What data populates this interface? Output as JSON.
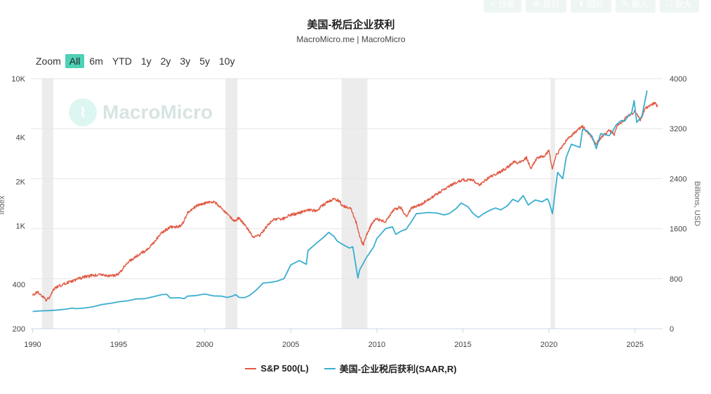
{
  "toolbar": {
    "buttons": [
      {
        "label": "分享",
        "icon": "share-icon"
      },
      {
        "label": "自订",
        "icon": "gear-icon"
      },
      {
        "label": "图片",
        "icon": "download-icon"
      },
      {
        "label": "嵌入",
        "icon": "pencil-icon"
      },
      {
        "label": "放大",
        "icon": "expand-icon"
      }
    ]
  },
  "header": {
    "title": "美国-税后企业获利",
    "subtitle": "MacroMicro.me | MacroMicro"
  },
  "zoom": {
    "label": "Zoom",
    "options": [
      "All",
      "6m",
      "YTD",
      "1y",
      "2y",
      "3y",
      "5y",
      "10y"
    ],
    "active": "All"
  },
  "watermark": {
    "text": "MacroMicro"
  },
  "colors": {
    "sp500": "#e05a43",
    "profits": "#3aaed0",
    "recession": "#ececec",
    "grid": "#e6e6e6",
    "accent": "#4fd1b6"
  },
  "chart_data": {
    "type": "line",
    "title": "美国-税后企业获利",
    "x_axis": {
      "ticks": [
        1990,
        1995,
        2000,
        2005,
        2010,
        2015,
        2020,
        2025
      ],
      "range": [
        1989.9,
        2026.6
      ]
    },
    "y_left": {
      "label": "Index",
      "scale": "log",
      "range": [
        200,
        10000
      ],
      "ticks": [
        {
          "value": 200,
          "label": "200"
        },
        {
          "value": 400,
          "label": "400"
        },
        {
          "value": 1000,
          "label": "1K"
        },
        {
          "value": 2000,
          "label": "2K"
        },
        {
          "value": 4000,
          "label": "4K"
        },
        {
          "value": 10000,
          "label": "10K"
        }
      ]
    },
    "y_right": {
      "label": "Billions, USD",
      "scale": "linear",
      "range": [
        0,
        4000
      ],
      "ticks": [
        0,
        800,
        1600,
        2400,
        3200,
        4000
      ]
    },
    "recessions": [
      [
        1990.55,
        1991.2
      ],
      [
        2001.2,
        2001.9
      ],
      [
        2007.95,
        2009.45
      ],
      [
        2020.1,
        2020.35
      ]
    ],
    "series": [
      {
        "name": "S&P 500(L)",
        "axis": "left",
        "points": [
          [
            1990.0,
            340
          ],
          [
            1990.3,
            355
          ],
          [
            1990.6,
            330
          ],
          [
            1990.8,
            310
          ],
          [
            1991.0,
            330
          ],
          [
            1991.3,
            380
          ],
          [
            1992.0,
            410
          ],
          [
            1993.0,
            450
          ],
          [
            1994.0,
            470
          ],
          [
            1994.5,
            455
          ],
          [
            1995.0,
            470
          ],
          [
            1995.5,
            560
          ],
          [
            1996.0,
            620
          ],
          [
            1996.5,
            670
          ],
          [
            1997.0,
            760
          ],
          [
            1997.5,
            900
          ],
          [
            1998.0,
            980
          ],
          [
            1998.6,
            1000
          ],
          [
            1998.8,
            1080
          ],
          [
            1999.0,
            1230
          ],
          [
            1999.5,
            1360
          ],
          [
            2000.0,
            1420
          ],
          [
            2000.5,
            1460
          ],
          [
            2000.8,
            1380
          ],
          [
            2001.0,
            1320
          ],
          [
            2001.3,
            1200
          ],
          [
            2001.7,
            1080
          ],
          [
            2002.0,
            1130
          ],
          [
            2002.5,
            950
          ],
          [
            2002.8,
            840
          ],
          [
            2003.2,
            860
          ],
          [
            2003.6,
            990
          ],
          [
            2004.0,
            1120
          ],
          [
            2004.5,
            1110
          ],
          [
            2005.0,
            1190
          ],
          [
            2005.5,
            1220
          ],
          [
            2006.0,
            1280
          ],
          [
            2006.5,
            1270
          ],
          [
            2007.0,
            1420
          ],
          [
            2007.5,
            1520
          ],
          [
            2007.8,
            1480
          ],
          [
            2008.0,
            1380
          ],
          [
            2008.5,
            1300
          ],
          [
            2008.8,
            1050
          ],
          [
            2009.0,
            850
          ],
          [
            2009.2,
            740
          ],
          [
            2009.5,
            920
          ],
          [
            2009.8,
            1080
          ],
          [
            2010.0,
            1110
          ],
          [
            2010.5,
            1070
          ],
          [
            2011.0,
            1290
          ],
          [
            2011.4,
            1340
          ],
          [
            2011.7,
            1150
          ],
          [
            2012.0,
            1310
          ],
          [
            2012.5,
            1390
          ],
          [
            2013.0,
            1500
          ],
          [
            2013.5,
            1650
          ],
          [
            2014.0,
            1800
          ],
          [
            2014.5,
            1950
          ],
          [
            2015.0,
            2050
          ],
          [
            2015.6,
            2050
          ],
          [
            2015.8,
            1930
          ],
          [
            2016.0,
            1900
          ],
          [
            2016.5,
            2130
          ],
          [
            2017.0,
            2280
          ],
          [
            2017.5,
            2450
          ],
          [
            2018.0,
            2750
          ],
          [
            2018.2,
            2650
          ],
          [
            2018.7,
            2900
          ],
          [
            2018.95,
            2450
          ],
          [
            2019.3,
            2880
          ],
          [
            2019.7,
            2980
          ],
          [
            2020.0,
            3230
          ],
          [
            2020.2,
            2400
          ],
          [
            2020.4,
            3000
          ],
          [
            2020.7,
            3350
          ],
          [
            2021.0,
            3800
          ],
          [
            2021.5,
            4300
          ],
          [
            2021.95,
            4750
          ],
          [
            2022.3,
            4200
          ],
          [
            2022.75,
            3600
          ],
          [
            2023.0,
            3950
          ],
          [
            2023.5,
            4450
          ],
          [
            2023.8,
            4200
          ],
          [
            2024.0,
            4800
          ],
          [
            2024.5,
            5450
          ],
          [
            2025.0,
            6000
          ],
          [
            2025.3,
            5200
          ],
          [
            2025.6,
            6300
          ],
          [
            2026.0,
            6700
          ],
          [
            2026.2,
            6850
          ],
          [
            2026.3,
            6400
          ]
        ]
      },
      {
        "name": "美国-企业税后获利(SAAR,R)",
        "axis": "right",
        "points": [
          [
            1990.0,
            275
          ],
          [
            1990.5,
            285
          ],
          [
            1991.0,
            290
          ],
          [
            1991.5,
            300
          ],
          [
            1992.0,
            315
          ],
          [
            1992.3,
            330
          ],
          [
            1992.5,
            320
          ],
          [
            1993.0,
            330
          ],
          [
            1993.5,
            350
          ],
          [
            1994.0,
            385
          ],
          [
            1994.5,
            405
          ],
          [
            1995.0,
            430
          ],
          [
            1995.5,
            445
          ],
          [
            1996.0,
            475
          ],
          [
            1996.5,
            480
          ],
          [
            1997.0,
            510
          ],
          [
            1997.5,
            545
          ],
          [
            1997.8,
            550
          ],
          [
            1998.0,
            490
          ],
          [
            1998.5,
            495
          ],
          [
            1998.8,
            480
          ],
          [
            1999.0,
            520
          ],
          [
            1999.5,
            530
          ],
          [
            2000.0,
            555
          ],
          [
            2000.5,
            525
          ],
          [
            2001.0,
            520
          ],
          [
            2001.3,
            500
          ],
          [
            2001.6,
            520
          ],
          [
            2001.8,
            545
          ],
          [
            2002.0,
            500
          ],
          [
            2002.3,
            495
          ],
          [
            2002.6,
            530
          ],
          [
            2003.0,
            620
          ],
          [
            2003.4,
            730
          ],
          [
            2003.8,
            740
          ],
          [
            2004.2,
            760
          ],
          [
            2004.6,
            800
          ],
          [
            2005.0,
            1020
          ],
          [
            2005.5,
            1090
          ],
          [
            2005.9,
            1030
          ],
          [
            2006.0,
            1250
          ],
          [
            2006.5,
            1370
          ],
          [
            2006.9,
            1460
          ],
          [
            2007.2,
            1540
          ],
          [
            2007.5,
            1480
          ],
          [
            2007.7,
            1400
          ],
          [
            2008.0,
            1350
          ],
          [
            2008.4,
            1290
          ],
          [
            2008.6,
            1310
          ],
          [
            2008.9,
            810
          ],
          [
            2009.0,
            940
          ],
          [
            2009.4,
            1140
          ],
          [
            2009.8,
            1300
          ],
          [
            2010.0,
            1440
          ],
          [
            2010.5,
            1600
          ],
          [
            2010.9,
            1630
          ],
          [
            2011.1,
            1510
          ],
          [
            2011.4,
            1560
          ],
          [
            2011.7,
            1590
          ],
          [
            2012.0,
            1710
          ],
          [
            2012.3,
            1840
          ],
          [
            2012.7,
            1850
          ],
          [
            2013.0,
            1860
          ],
          [
            2013.5,
            1850
          ],
          [
            2013.9,
            1820
          ],
          [
            2014.2,
            1840
          ],
          [
            2014.6,
            1920
          ],
          [
            2014.9,
            2010
          ],
          [
            2015.3,
            1950
          ],
          [
            2015.6,
            1840
          ],
          [
            2015.9,
            1780
          ],
          [
            2016.2,
            1840
          ],
          [
            2016.6,
            1900
          ],
          [
            2016.9,
            1930
          ],
          [
            2017.2,
            1900
          ],
          [
            2017.6,
            1970
          ],
          [
            2017.9,
            2070
          ],
          [
            2018.2,
            2030
          ],
          [
            2018.5,
            2130
          ],
          [
            2018.8,
            1980
          ],
          [
            2019.2,
            2060
          ],
          [
            2019.6,
            2030
          ],
          [
            2019.9,
            2080
          ],
          [
            2020.0,
            2030
          ],
          [
            2020.2,
            1840
          ],
          [
            2020.5,
            2500
          ],
          [
            2020.8,
            2400
          ],
          [
            2021.0,
            2740
          ],
          [
            2021.3,
            2950
          ],
          [
            2021.6,
            2920
          ],
          [
            2021.8,
            2900
          ],
          [
            2021.95,
            3190
          ],
          [
            2022.2,
            3170
          ],
          [
            2022.5,
            3080
          ],
          [
            2022.75,
            2880
          ],
          [
            2023.0,
            3120
          ],
          [
            2023.3,
            3100
          ],
          [
            2023.5,
            3090
          ],
          [
            2023.7,
            3160
          ],
          [
            2023.9,
            3260
          ],
          [
            2024.2,
            3330
          ],
          [
            2024.4,
            3320
          ],
          [
            2024.6,
            3400
          ],
          [
            2024.8,
            3450
          ],
          [
            2024.95,
            3650
          ],
          [
            2025.1,
            3300
          ],
          [
            2025.4,
            3400
          ],
          [
            2025.7,
            3810
          ]
        ]
      }
    ],
    "legend": {
      "placement": "bottom-center"
    }
  }
}
